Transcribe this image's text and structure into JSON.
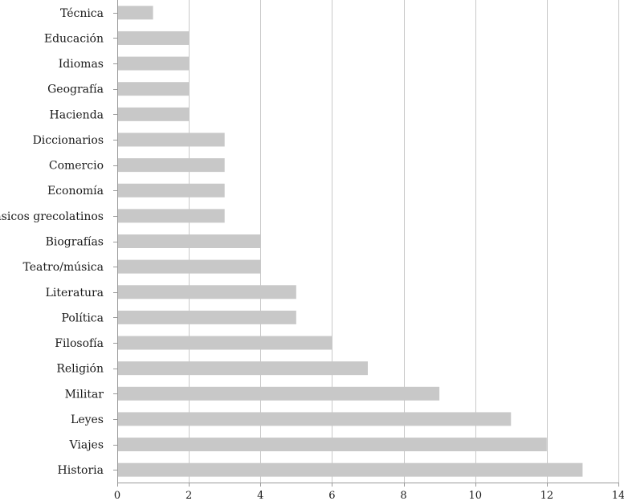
{
  "chart_data": {
    "type": "bar",
    "orientation": "horizontal",
    "title": "",
    "xlabel": "",
    "ylabel": "",
    "categories": [
      "Técnica",
      "Educación",
      "Idiomas",
      "Geografía",
      "Hacienda",
      "Diccionarios",
      "Comercio",
      "Economía",
      "Clásicos grecolatinos",
      "Biografías",
      "Teatro/música",
      "Literatura",
      "Política",
      "Filosofía",
      "Religión",
      "Militar",
      "Leyes",
      "Viajes",
      "Historia"
    ],
    "values": [
      1,
      2,
      2,
      2,
      2,
      3,
      3,
      3,
      3,
      4,
      4,
      5,
      5,
      6,
      7,
      9,
      11,
      12,
      13
    ],
    "xlim": [
      0,
      14
    ],
    "xticks": [
      0,
      2,
      4,
      6,
      8,
      10,
      12,
      14
    ],
    "xtick_labels": [
      "0",
      "2",
      "4",
      "6",
      "8",
      "10",
      "12",
      "14"
    ],
    "grid": "vertical",
    "legend": "none",
    "bar_color": "#c8c8c8"
  }
}
